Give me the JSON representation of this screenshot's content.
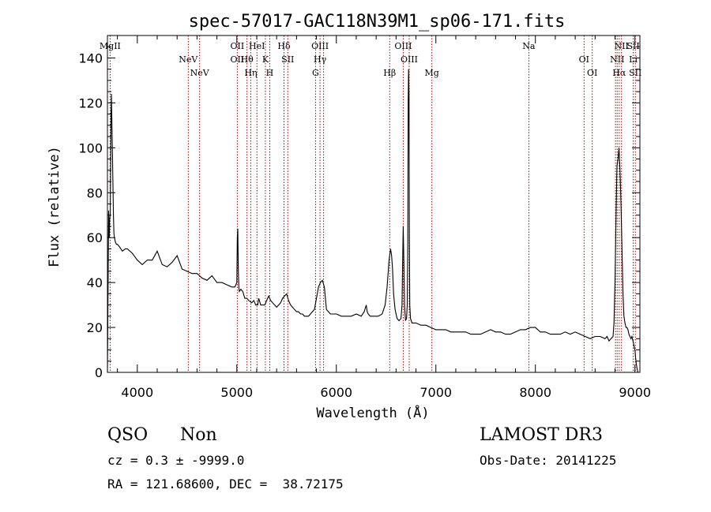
{
  "chart_data": {
    "type": "line",
    "title": "spec-57017-GAC118N39M1_sp06-171.fits",
    "xlabel": "Wavelength (Å)",
    "ylabel": "Flux (relative)",
    "xlim": [
      3700,
      9050
    ],
    "ylim": [
      0,
      150
    ],
    "x_ticks": [
      4000,
      5000,
      6000,
      7000,
      8000,
      9000
    ],
    "y_ticks": [
      0,
      20,
      40,
      60,
      80,
      100,
      120,
      140
    ],
    "x_tick_labels": [
      "4000",
      "5000",
      "6000",
      "7000",
      "8000",
      "9000"
    ],
    "y_tick_labels": [
      "0",
      "20",
      "40",
      "60",
      "80",
      "100",
      "120",
      "140"
    ],
    "series": [
      {
        "x": [
          3700,
          3712,
          3718,
          3722,
          3728,
          3732,
          3736,
          3740,
          3745,
          3750,
          3755,
          3760,
          3765,
          3770,
          3780,
          3790,
          3800,
          3820,
          3850,
          3880,
          3900,
          3950,
          4000,
          4050,
          4100,
          4150,
          4200,
          4250,
          4300,
          4350,
          4400,
          4450,
          4500,
          4550,
          4600,
          4650,
          4700,
          4750,
          4800,
          4850,
          4900,
          4950,
          4980,
          5000,
          5005,
          5010,
          5015,
          5020,
          5025,
          5040,
          5060,
          5080,
          5100,
          5120,
          5150,
          5170,
          5190,
          5200,
          5210,
          5220,
          5240,
          5260,
          5280,
          5300,
          5320,
          5340,
          5360,
          5380,
          5400,
          5420,
          5440,
          5460,
          5480,
          5500,
          5520,
          5540,
          5560,
          5580,
          5600,
          5620,
          5640,
          5660,
          5680,
          5700,
          5720,
          5740,
          5760,
          5780,
          5800,
          5820,
          5840,
          5860,
          5880,
          5900,
          5920,
          5940,
          5960,
          6000,
          6050,
          6100,
          6150,
          6200,
          6250,
          6280,
          6300,
          6310,
          6320,
          6340,
          6380,
          6420,
          6460,
          6490,
          6510,
          6530,
          6545,
          6555,
          6565,
          6575,
          6590,
          6610,
          6630,
          6650,
          6660,
          6665,
          6672,
          6678,
          6685,
          6695,
          6705,
          6712,
          6718,
          6722,
          6726,
          6730,
          6734,
          6738,
          6745,
          6760,
          6780,
          6800,
          6850,
          6900,
          6950,
          7000,
          7050,
          7100,
          7150,
          7200,
          7250,
          7300,
          7350,
          7400,
          7450,
          7500,
          7550,
          7600,
          7650,
          7700,
          7750,
          7800,
          7850,
          7900,
          7950,
          8000,
          8050,
          8100,
          8150,
          8200,
          8250,
          8300,
          8350,
          8400,
          8450,
          8500,
          8550,
          8600,
          8650,
          8700,
          8720,
          8740,
          8760,
          8780,
          8790,
          8800,
          8810,
          8820,
          8830,
          8840,
          8850,
          8860,
          8870,
          8880,
          8890,
          8900,
          8910,
          8920,
          8930,
          8940,
          8950,
          8960,
          8970,
          8980,
          8990,
          9000,
          9010,
          9020,
          9030
        ],
        "y": [
          0,
          72,
          60,
          68,
          70,
          90,
          112,
          124,
          110,
          98,
          85,
          70,
          62,
          60,
          58,
          57,
          57,
          56,
          54,
          55,
          55,
          53,
          50,
          48,
          50,
          50,
          54,
          48,
          47,
          49,
          52,
          46,
          45,
          44,
          44,
          42,
          41,
          43,
          40,
          40,
          39,
          38,
          38,
          40,
          60,
          64,
          45,
          38,
          36,
          37,
          36,
          33,
          33,
          32,
          31,
          32,
          30,
          30,
          30,
          33,
          30,
          30,
          30,
          32,
          34,
          32,
          31,
          30,
          29,
          30,
          31,
          33,
          34,
          35,
          32,
          30,
          29,
          28,
          27,
          27,
          26,
          26,
          25,
          25,
          25,
          26,
          27,
          28,
          33,
          38,
          40,
          41,
          38,
          28,
          27,
          26,
          26,
          26,
          25,
          25,
          25,
          26,
          25,
          27,
          30,
          27,
          26,
          25,
          25,
          25,
          26,
          30,
          38,
          50,
          55,
          52,
          46,
          35,
          28,
          24,
          23,
          24,
          30,
          45,
          65,
          50,
          30,
          23,
          24,
          30,
          58,
          120,
          135,
          125,
          60,
          30,
          24,
          22,
          22,
          22,
          21,
          21,
          20,
          19,
          19,
          19,
          18,
          18,
          18,
          18,
          17,
          17,
          17,
          18,
          19,
          18,
          18,
          17,
          17,
          18,
          19,
          19,
          20,
          20,
          18,
          18,
          17,
          17,
          17,
          18,
          17,
          18,
          17,
          16,
          15,
          16,
          16,
          15,
          16,
          14,
          15,
          16,
          22,
          40,
          70,
          92,
          95,
          100,
          90,
          75,
          55,
          35,
          25,
          22,
          20,
          20,
          19,
          17,
          16,
          15,
          16,
          14,
          12,
          10,
          5,
          2,
          0
        ]
      }
    ],
    "lines_top": [
      {
        "x": 3727,
        "labels": [
          "MgII"
        ]
      },
      {
        "x": 4512,
        "labels": [
          "NeV"
        ]
      },
      {
        "x": 4626,
        "labels": [
          "NeV"
        ]
      },
      {
        "x": 5005,
        "labels": [
          "OII",
          "OII"
        ]
      },
      {
        "x": 5102,
        "labels": [
          "Hθ"
        ]
      },
      {
        "x": 5140,
        "labels": [
          "Hη"
        ]
      },
      {
        "x": 5202,
        "labels": [
          "HeI"
        ]
      },
      {
        "x": 5287,
        "labels": [
          "K"
        ]
      },
      {
        "x": 5331,
        "labels": [
          "H"
        ]
      },
      {
        "x": 5474,
        "labels": [
          "Hδ"
        ]
      },
      {
        "x": 5512,
        "labels": [
          "SII"
        ]
      },
      {
        "x": 5791,
        "labels": [
          "G"
        ]
      },
      {
        "x": 5836,
        "labels": [
          "OIII",
          "Hγ"
        ]
      },
      {
        "x": 5872,
        "labels": []
      },
      {
        "x": 6536,
        "labels": [
          "Hβ"
        ]
      },
      {
        "x": 6672,
        "labels": [
          "OIII"
        ]
      },
      {
        "x": 6732,
        "labels": [
          "OIII"
        ]
      },
      {
        "x": 6960,
        "labels": [
          "Mg"
        ]
      },
      {
        "x": 7934,
        "labels": [
          "Na"
        ]
      },
      {
        "x": 8489,
        "labels": [
          "OI"
        ]
      },
      {
        "x": 8571,
        "labels": [
          "OI"
        ]
      },
      {
        "x": 8805,
        "labels": []
      },
      {
        "x": 8822,
        "labels": [
          "NII"
        ]
      },
      {
        "x": 8842,
        "labels": [
          "Hα"
        ]
      },
      {
        "x": 8865,
        "labels": [
          "NII"
        ]
      },
      {
        "x": 8983,
        "labels": [
          "SII",
          "Li"
        ]
      },
      {
        "x": 9004,
        "labels": [
          "SII"
        ]
      }
    ]
  },
  "info": {
    "class": "QSO",
    "subclass": "Non",
    "survey": "LAMOST DR3",
    "cz": "cz = 0.3 ± -9999.0",
    "obs_date": "Obs-Date: 20141225",
    "radec": "RA = 121.68600, DEC =  38.72175"
  },
  "colors": {
    "spectrum": "#000000",
    "line_markers": "#b00000",
    "axes": "#000000"
  }
}
